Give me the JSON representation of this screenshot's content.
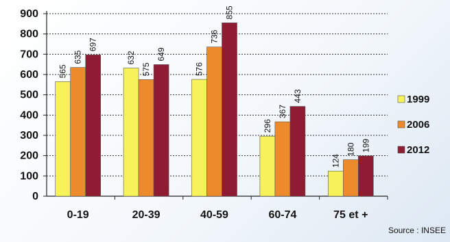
{
  "chart_data": {
    "type": "bar",
    "categories": [
      "0-19",
      "20-39",
      "40-59",
      "60-74",
      "75 et +"
    ],
    "series": [
      {
        "name": "1999",
        "color": "#f7f25a",
        "values": [
          565,
          632,
          576,
          296,
          124
        ]
      },
      {
        "name": "2006",
        "color": "#ec8a2c",
        "values": [
          635,
          575,
          736,
          367,
          180
        ]
      },
      {
        "name": "2012",
        "color": "#8e1d33",
        "values": [
          697,
          649,
          855,
          443,
          199
        ]
      }
    ],
    "data_labels": [
      [
        "565",
        "635",
        "697"
      ],
      [
        "632",
        "575",
        "649"
      ],
      [
        "576",
        "736",
        "855"
      ],
      [
        "296",
        "367",
        "443"
      ],
      [
        "124",
        "180",
        "199"
      ]
    ],
    "yticks": [
      "0",
      "100",
      "200",
      "300",
      "400",
      "500",
      "600",
      "700",
      "800",
      "900"
    ],
    "ylim": [
      0,
      900
    ],
    "grid": true,
    "grid_style": "dashed",
    "legend_position": "right",
    "source": "Source : INSEE"
  }
}
